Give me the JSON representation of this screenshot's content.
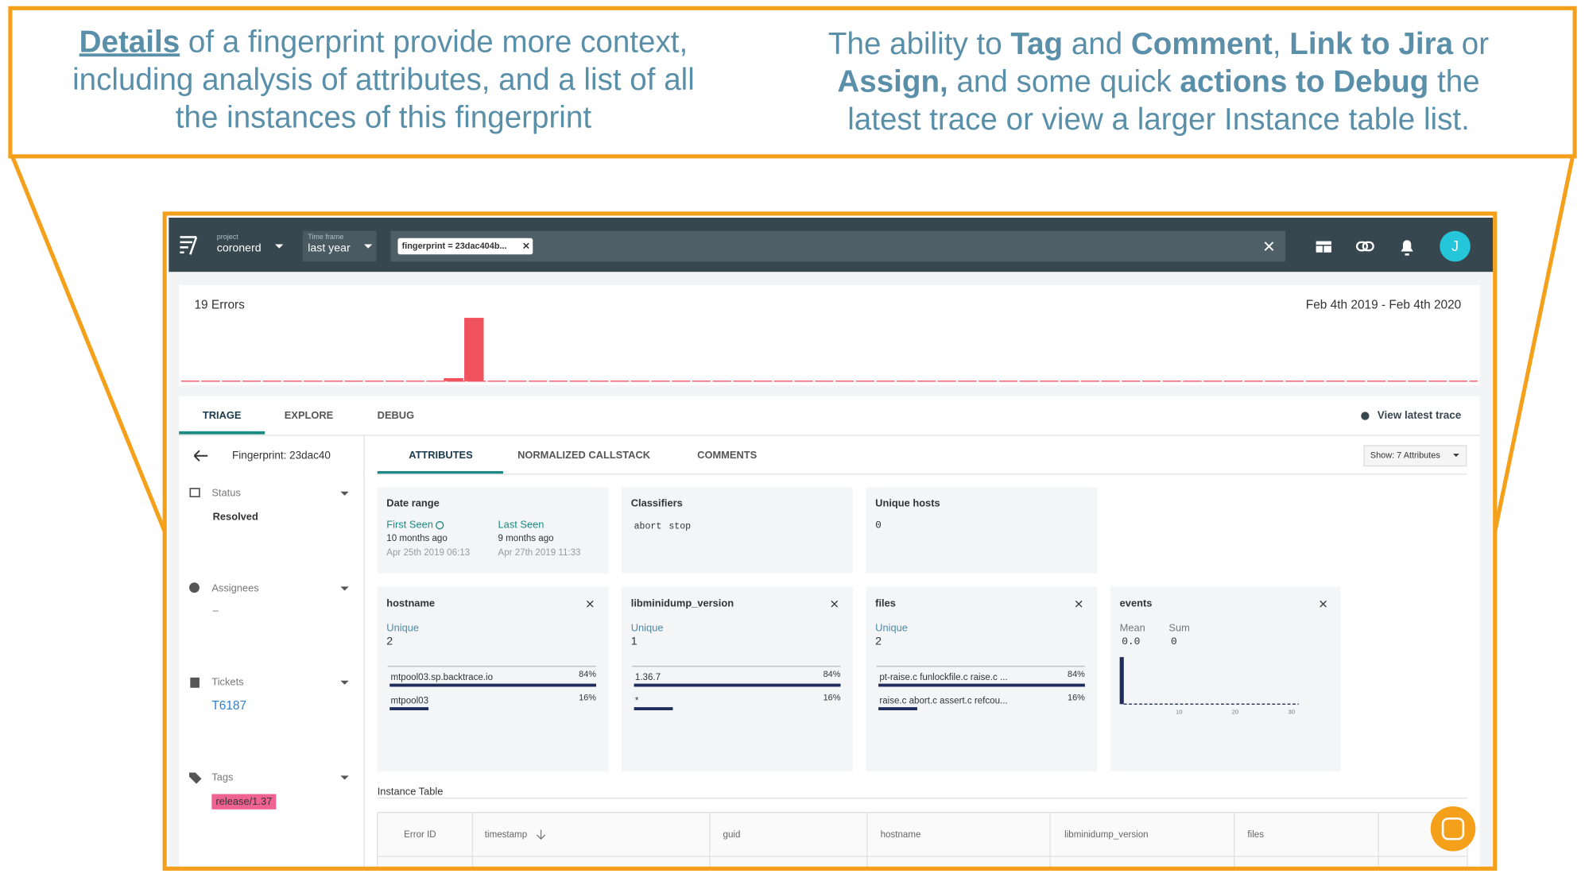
{
  "annotations": {
    "left": [
      [
        "Details",
        " of a fingerprint provide more context,"
      ],
      [
        "including analysis of attributes, and a list of all"
      ],
      [
        "the instances of this fingerprint"
      ]
    ],
    "right": [
      [
        "The ability to ",
        "Tag",
        " and ",
        "Comment",
        ", ",
        "Link to Jira",
        " or"
      ],
      [
        "Assign,",
        " and some quick ",
        "actions to Debug",
        " the"
      ],
      [
        "latest trace or view a larger Instance table list."
      ]
    ]
  },
  "header": {
    "project_label": "project",
    "project": "coronerd",
    "timeframe_label": "Time frame",
    "timeframe": "last year",
    "filter": "fingerprint = 23dac404b...",
    "avatar": "J"
  },
  "histogram": {
    "count": "19 Errors",
    "range": "Feb 4th 2019 - Feb 4th 2020"
  },
  "tabs": [
    "TRIAGE",
    "EXPLORE",
    "DEBUG"
  ],
  "view_latest_trace": "View latest trace",
  "sidebar": {
    "fingerprint": "Fingerprint: 23dac40",
    "status_label": "Status",
    "status": "Resolved",
    "assignees_label": "Assignees",
    "assignees": "–",
    "tickets_label": "Tickets",
    "ticket": "T6187",
    "tags_label": "Tags",
    "tag": "release/1.37"
  },
  "subtabs": [
    "ATTRIBUTES",
    "NORMALIZED CALLSTACK",
    "COMMENTS"
  ],
  "show_select": "Show: 7 Attributes",
  "summary_cards": {
    "date_range": {
      "title": "Date range",
      "first_label": "First Seen",
      "first_rel": "10 months ago",
      "first_date": "Apr 25th 2019 06:13",
      "last_label": "Last Seen",
      "last_rel": "9 months ago",
      "last_date": "Apr 27th 2019 11:33"
    },
    "classifiers": {
      "title": "Classifiers",
      "items": [
        "abort",
        "stop"
      ]
    },
    "unique_hosts": {
      "title": "Unique hosts",
      "value": "0"
    }
  },
  "attribute_cards": [
    {
      "title": "hostname",
      "unique_label": "Unique",
      "unique": "2",
      "rows": [
        [
          "mtpool03.sp.backtrace.io",
          "84%"
        ],
        [
          "mtpool03",
          "16%"
        ]
      ]
    },
    {
      "title": "libminidump_version",
      "unique_label": "Unique",
      "unique": "1",
      "rows": [
        [
          "1.36.7",
          "84%"
        ],
        [
          "*",
          "16%"
        ]
      ]
    },
    {
      "title": "files",
      "unique_label": "Unique",
      "unique": "2",
      "rows": [
        [
          "pt-raise.c funlockfile.c raise.c ...",
          "84%"
        ],
        [
          "raise.c abort.c assert.c refcou...",
          "16%"
        ]
      ]
    }
  ],
  "events_card": {
    "title": "events",
    "mean_label": "Mean",
    "sum_label": "Sum",
    "mean": "0.0",
    "sum": "0",
    "ticks": [
      "10",
      "20",
      "30"
    ]
  },
  "instance_table": {
    "title": "Instance Table",
    "columns": [
      "Error ID",
      "timestamp",
      "guid",
      "hostname",
      "libminidump_version",
      "files"
    ]
  }
}
